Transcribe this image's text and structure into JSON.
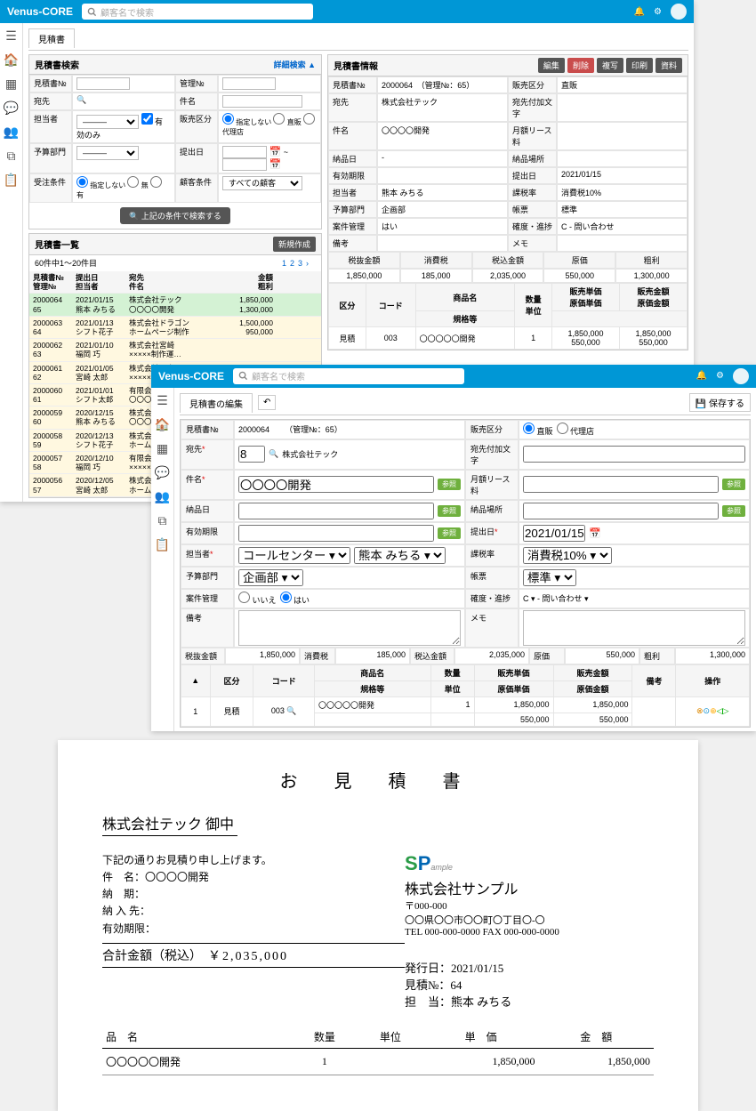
{
  "brand": "Venus-CORE",
  "search_placeholder": "顧客名で検索",
  "tab_estimate": "見積書",
  "tab_edit": "見積書の編集",
  "detail_search": "詳細検索 ▲",
  "panel_search_title": "見積書検索",
  "panel_info_title": "見積書情報",
  "panel_list_title": "見積書一覧",
  "btn_edit": "編集",
  "btn_delete": "削除",
  "btn_copy": "複写",
  "btn_print": "印刷",
  "btn_doc": "資料",
  "btn_new": "新規作成",
  "btn_save": "保存する",
  "btn_searchcond": "上記の条件で検索する",
  "btn_ref": "参照",
  "labels": {
    "est_no": "見積書№",
    "mgmt_no": "管理№",
    "dest": "宛先",
    "item": "件名",
    "person": "担当者",
    "valid_only": "有効のみ",
    "sales_div": "販売区分",
    "not_spec": "指定しない",
    "direct": "直販",
    "agency": "代理店",
    "budget_dept": "予算部門",
    "submit_date": "提出日",
    "order_cond": "受注条件",
    "none": "無",
    "yes": "有",
    "cust_cond": "顧客条件",
    "all_cust": "すべての顧客",
    "dest_suffix": "宛先付加文字",
    "lease": "月額リース料",
    "delivery": "納品日",
    "delivery_place": "納品場所",
    "valid_until": "有効期限",
    "tax_rate": "課税率",
    "tax10": "消費税10%",
    "template": "帳票",
    "standard": "標準",
    "project_mgmt": "案件管理",
    "yes_j": "はい",
    "no_j": "いいえ",
    "progress": "確度・進捗",
    "progress_val": "C - 問い合わせ",
    "note": "備考",
    "memo": "メモ",
    "subtotal": "税抜金額",
    "tax": "消費税",
    "total": "税込金額",
    "cost": "原価",
    "profit": "粗利",
    "div": "区分",
    "code": "コード",
    "prod_name": "商品名",
    "spec": "規格等",
    "qty": "数量",
    "unit": "単位",
    "sell_price": "販売単価",
    "sell_amount": "販売金額",
    "cost_price": "原価単価",
    "cost_amount": "原価金額",
    "remark": "備考",
    "op": "操作"
  },
  "info": {
    "est_no": "2000064",
    "mgmt": "（管理№：65）",
    "sales_div": "直販",
    "dest": "株式会社テック",
    "item": "〇〇〇〇開発",
    "delivery": "-",
    "submit_date": "2021/01/15",
    "person": "熊本 みちる",
    "tax_rate": "消費税10%",
    "dept": "企画部",
    "dept_select": "企画部 ▾",
    "call_center": "コールセンター ▾",
    "person_select": "熊本 みちる ▾",
    "progress_select": "C ▾ - 問い合わせ  ▾",
    "tax_select": "消費税10% ▾",
    "template_select": "標準 ▾",
    "project_mgmt": "はい",
    "progress": "C - 問い合わせ",
    "dest_id": "8"
  },
  "totals": {
    "subtotal": "1,850,000",
    "tax": "185,000",
    "total": "2,035,000",
    "cost": "550,000",
    "profit": "1,300,000"
  },
  "line": {
    "div": "見積",
    "code": "003",
    "name": "〇〇〇〇〇開発",
    "qty": "1",
    "sell": "1,850,000",
    "sell_amt": "1,850,000",
    "cost": "550,000",
    "cost_amt": "550,000"
  },
  "list_hdr": {
    "c1a": "見積書№",
    "c1b": "管理№",
    "c2a": "提出日",
    "c2b": "担当者",
    "c3a": "宛先",
    "c3b": "件名",
    "c4a": "金額",
    "c4b": "粗利"
  },
  "list_count": "60件中1～20件目",
  "list": [
    {
      "no": "2000064",
      "mg": "65",
      "date": "2021/01/15",
      "p": "熊本 みちる",
      "dest": "株式会社テック",
      "item": "〇〇〇〇開発",
      "amt": "1,850,000",
      "pr": "1,300,000",
      "sel": true
    },
    {
      "no": "2000063",
      "mg": "64",
      "date": "2021/01/13",
      "p": "シフト花子",
      "dest": "株式会社ドラゴン",
      "item": "ホームページ制作",
      "amt": "1,500,000",
      "pr": "950,000"
    },
    {
      "no": "2000062",
      "mg": "63",
      "date": "2021/01/10",
      "p": "福岡 巧",
      "dest": "株式会社宮崎",
      "item": "×××××制作運…",
      "amt": "",
      "pr": ""
    },
    {
      "no": "2000061",
      "mg": "62",
      "date": "2021/01/05",
      "p": "宮崎 太郎",
      "dest": "株式会社田中",
      "item": "×××××制作",
      "amt": "",
      "pr": ""
    },
    {
      "no": "2000060",
      "mg": "61",
      "date": "2021/01/01",
      "p": "シフト太郎",
      "dest": "有限会社NAKAM…",
      "item": "〇〇〇〇開発",
      "amt": "",
      "pr": ""
    },
    {
      "no": "2000059",
      "mg": "60",
      "date": "2020/12/15",
      "p": "熊本 みちる",
      "dest": "株式会社まるい",
      "item": "〇〇〇〇開発",
      "amt": "",
      "pr": ""
    },
    {
      "no": "2000058",
      "mg": "59",
      "date": "2020/12/13",
      "p": "シフト花子",
      "dest": "株式会社ドラゴン",
      "item": "ホームページ制…",
      "amt": "",
      "pr": ""
    },
    {
      "no": "2000057",
      "mg": "58",
      "date": "2020/12/10",
      "p": "福岡 巧",
      "dest": "有限会社あおや…",
      "item": "×××××制作運…",
      "amt": "",
      "pr": ""
    },
    {
      "no": "2000056",
      "mg": "57",
      "date": "2020/12/05",
      "p": "宮崎 太郎",
      "dest": "株式会社SAMPLE",
      "item": "ホームページ制…",
      "amt": "",
      "pr": ""
    }
  ],
  "report": {
    "title": "お 見 積 書",
    "to": "株式会社テック 御中",
    "intro": "下記の通りお見積り申し上げます。",
    "k_item": "件　名：",
    "k_delivery": "納　期：",
    "k_place": "納 入 先：",
    "k_valid": "有効期限：",
    "item": "〇〇〇〇開発",
    "total_label": "合計金額（税込）",
    "total": "￥2,035,000",
    "company": "株式会社サンプル",
    "zip": "〒000-000",
    "addr": "〇〇県〇〇市〇〇町〇丁目〇-〇",
    "tel": "TEL 000-000-0000  FAX 000-000-0000",
    "issue_label": "発行日：",
    "issue": "2021/01/15",
    "estno_label": "見積№：",
    "estno": "64",
    "person_label": "担　当：",
    "person": "熊本 みちる",
    "th_name": "品　名",
    "th_qty": "数量",
    "th_unit": "単位",
    "th_price": "単　価",
    "th_amount": "金　額",
    "row_name": "〇〇〇〇〇開発",
    "row_qty": "1",
    "row_price": "1,850,000",
    "row_amount": "1,850,000"
  }
}
